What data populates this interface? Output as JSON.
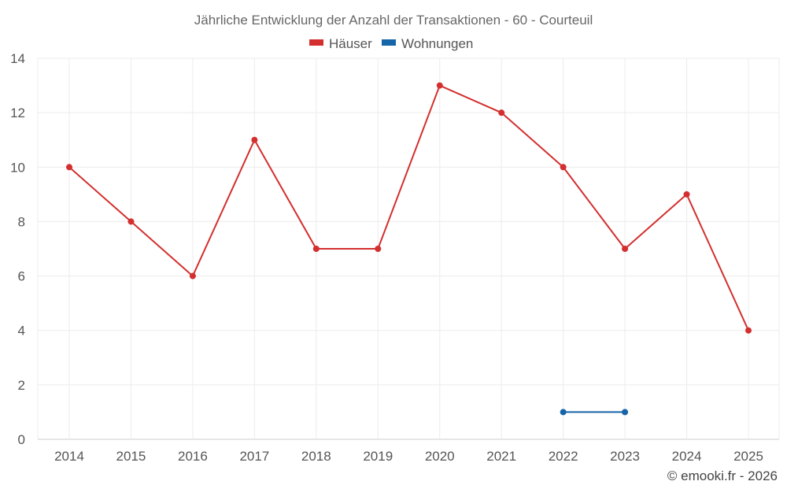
{
  "chart_data": {
    "type": "line",
    "title": "Jährliche Entwicklung der Anzahl der Transaktionen - 60 - Courteuil",
    "categories": [
      "2014",
      "2015",
      "2016",
      "2017",
      "2018",
      "2019",
      "2020",
      "2021",
      "2022",
      "2023",
      "2024",
      "2025"
    ],
    "ylim": [
      0,
      14
    ],
    "yticks": [
      0,
      2,
      4,
      6,
      8,
      10,
      12,
      14
    ],
    "grid": true,
    "legend_position": "top-center",
    "xlabel": "",
    "ylabel": "",
    "series": [
      {
        "name": "Häuser",
        "color": "#d32f2f",
        "values": [
          10,
          8,
          6,
          11,
          7,
          7,
          13,
          12,
          10,
          7,
          9,
          4
        ]
      },
      {
        "name": "Wohnungen",
        "color": "#1565a8",
        "values": [
          null,
          null,
          null,
          null,
          null,
          null,
          null,
          null,
          1,
          1,
          null,
          null
        ]
      }
    ]
  },
  "footer": "© emooki.fr - 2026"
}
